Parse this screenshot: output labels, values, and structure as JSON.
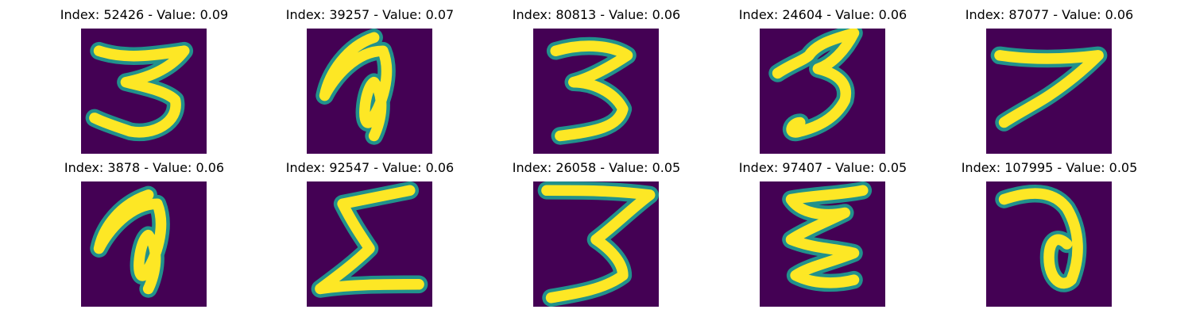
{
  "colors": {
    "background": "#440154",
    "mid": "#21918c",
    "stroke": "#fde725"
  },
  "panels": [
    {
      "title": "Index: 52426 - Value: 0.09",
      "glyph": "3"
    },
    {
      "title": "Index: 39257 - Value: 0.07",
      "glyph": "a-loop"
    },
    {
      "title": "Index: 80813 - Value: 0.06",
      "glyph": "3"
    },
    {
      "title": "Index: 24604 - Value: 0.06",
      "glyph": "3"
    },
    {
      "title": "Index: 87077 - Value: 0.06",
      "glyph": "7"
    },
    {
      "title": "Index: 3878 - Value: 0.06",
      "glyph": "a-loop"
    },
    {
      "title": "Index: 92547 - Value: 0.06",
      "glyph": "sigma"
    },
    {
      "title": "Index: 26058 - Value: 0.05",
      "glyph": "3-flat"
    },
    {
      "title": "Index: 97407 - Value: 0.05",
      "glyph": "e-wavy"
    },
    {
      "title": "Index: 107995 - Value: 0.05",
      "glyph": "a-loop"
    }
  ]
}
